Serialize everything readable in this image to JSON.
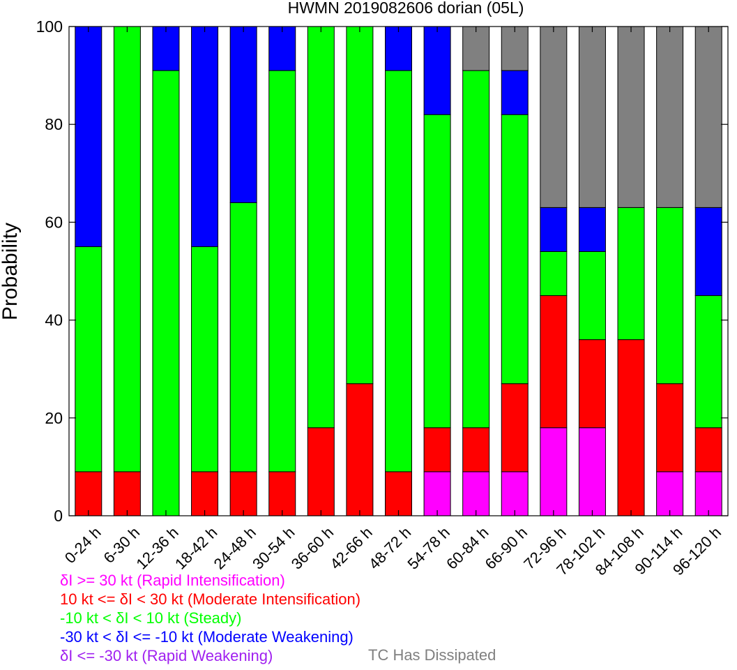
{
  "chart_data": {
    "type": "bar",
    "stacked": true,
    "title": "HWMN 2019082606 dorian (05L)",
    "ylabel": "Probability",
    "xlabel": "",
    "ylim": [
      0,
      100
    ],
    "yticks": [
      "0",
      "20",
      "40",
      "60",
      "80",
      "100"
    ],
    "categories": [
      "0-24 h",
      "6-30 h",
      "12-36 h",
      "18-42 h",
      "24-48 h",
      "30-54 h",
      "36-60 h",
      "42-66 h",
      "48-72 h",
      "54-78 h",
      "60-84 h",
      "66-90 h",
      "72-96 h",
      "78-102 h",
      "84-108 h",
      "90-114 h",
      "96-120 h"
    ],
    "series": [
      {
        "key": "ri",
        "color": "#ff00ff",
        "values": [
          0,
          0,
          0,
          0,
          0,
          0,
          0,
          0,
          0,
          9,
          9,
          9,
          18,
          18,
          0,
          9,
          9
        ]
      },
      {
        "key": "mi",
        "color": "#ff0000",
        "values": [
          9,
          9,
          0,
          9,
          9,
          9,
          18,
          27,
          9,
          9,
          9,
          18,
          27,
          18,
          36,
          18,
          9
        ]
      },
      {
        "key": "steady",
        "color": "#00ff00",
        "values": [
          46,
          91,
          91,
          46,
          55,
          82,
          82,
          73,
          82,
          64,
          73,
          55,
          9,
          18,
          27,
          36,
          27
        ]
      },
      {
        "key": "mw",
        "color": "#0000ff",
        "values": [
          45,
          0,
          9,
          45,
          36,
          9,
          0,
          0,
          9,
          18,
          0,
          9,
          9,
          9,
          0,
          0,
          18
        ]
      },
      {
        "key": "rw",
        "color": "#a020f0",
        "values": [
          0,
          0,
          0,
          0,
          0,
          0,
          0,
          0,
          0,
          0,
          0,
          0,
          0,
          0,
          0,
          0,
          0
        ]
      },
      {
        "key": "dissipated",
        "color": "#808080",
        "values": [
          0,
          0,
          0,
          0,
          0,
          0,
          0,
          0,
          0,
          0,
          9,
          9,
          37,
          37,
          37,
          37,
          37
        ]
      }
    ]
  },
  "legend": {
    "ri": {
      "text": "δI >= 30 kt (Rapid Intensification)",
      "color": "#ff00ff"
    },
    "mi": {
      "text": "10 kt <= δI < 30 kt (Moderate Intensification)",
      "color": "#ff0000"
    },
    "steady": {
      "text": "-10 kt < δI < 10 kt (Steady)",
      "color": "#00ff00"
    },
    "mw": {
      "text": "-30 kt < δI <= -10 kt (Moderate Weakening)",
      "color": "#0000ff"
    },
    "rw": {
      "text": "δI <= -30 kt (Rapid Weakening)",
      "color": "#a020f0"
    },
    "dissipated": {
      "text": "TC Has Dissipated",
      "color": "#808080"
    }
  }
}
